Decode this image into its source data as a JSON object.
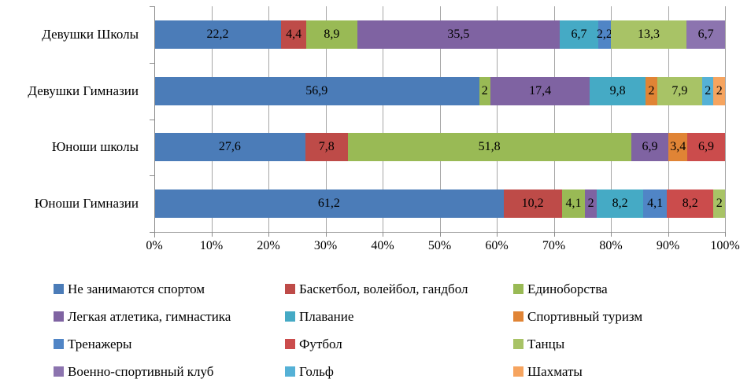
{
  "chart_data": {
    "type": "bar",
    "variant": "horizontal-stacked-100",
    "title": "",
    "xlabel": "",
    "ylabel": "",
    "xlim": [
      0,
      100
    ],
    "grid": "vertical",
    "legend_position": "bottom",
    "legend_columns": 3,
    "x_ticks": [
      "0%",
      "10%",
      "20%",
      "30%",
      "40%",
      "50%",
      "60%",
      "70%",
      "80%",
      "90%",
      "100%"
    ],
    "categories": [
      "Девушки Школы",
      "Девушки Гимназии",
      "Юноши школы",
      "Юноши Гимназии"
    ],
    "series": [
      {
        "name": "Не занимаются спортом",
        "color": "#4b7cb8",
        "values": [
          22.2,
          56.9,
          27.6,
          61.2
        ]
      },
      {
        "name": "Баскетбол, волейбол, гандбол",
        "color": "#be4b48",
        "values": [
          4.4,
          0,
          7.8,
          10.2
        ]
      },
      {
        "name": "Единоборства",
        "color": "#99ba55",
        "values": [
          8.9,
          2,
          51.8,
          4.1
        ]
      },
      {
        "name": "Легкая атлетика, гимнастика",
        "color": "#7f63a2",
        "values": [
          35.5,
          17.4,
          6.9,
          2
        ]
      },
      {
        "name": "Плавание",
        "color": "#45aac5",
        "values": [
          6.7,
          9.8,
          0,
          8.2
        ]
      },
      {
        "name": "Спортивный туризм",
        "color": "#e08435",
        "values": [
          0,
          2,
          3.4,
          0
        ]
      },
      {
        "name": "Тренажеры",
        "color": "#5085c6",
        "values": [
          2.2,
          0,
          0,
          4.1
        ]
      },
      {
        "name": "Футбол",
        "color": "#cb4c4c",
        "values": [
          0,
          0,
          6.9,
          8.2
        ]
      },
      {
        "name": "Танцы",
        "color": "#a8c366",
        "values": [
          13.3,
          7.9,
          0,
          2
        ]
      },
      {
        "name": "Военно-спортивный клуб",
        "color": "#8c74af",
        "values": [
          6.7,
          0,
          0,
          0
        ]
      },
      {
        "name": "Гольф",
        "color": "#55b1d6",
        "values": [
          0,
          2,
          0,
          0
        ]
      },
      {
        "name": "Шахматы",
        "color": "#f6a45f",
        "values": [
          0,
          2,
          0,
          0
        ]
      }
    ]
  }
}
